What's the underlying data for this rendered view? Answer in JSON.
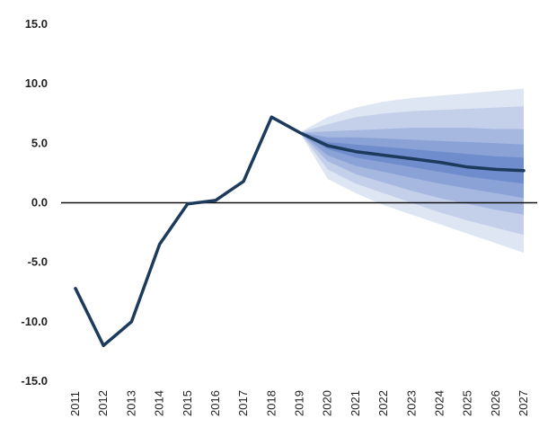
{
  "chart_data": {
    "type": "line",
    "title": "",
    "xlabel": "",
    "ylabel": "",
    "ylim": [
      -15,
      15
    ],
    "xlim": [
      2011,
      2027
    ],
    "grid": false,
    "zero_line": true,
    "y_ticks": [
      "15.0",
      "10.0",
      "5.0",
      "0.0",
      "-5.0",
      "-10.0",
      "-15.0"
    ],
    "x_ticks": [
      "2011",
      "2012",
      "2013",
      "2014",
      "2015",
      "2016",
      "2017",
      "2018",
      "2019",
      "2020",
      "2021",
      "2022",
      "2023",
      "2024",
      "2025",
      "2026",
      "2027"
    ],
    "series": [
      {
        "x": [
          2011,
          2012,
          2013,
          2014,
          2015,
          2016,
          2017,
          2018,
          2019,
          2020,
          2021,
          2022,
          2023,
          2024,
          2025,
          2026,
          2027
        ],
        "values": [
          -7.2,
          -12.0,
          -10.0,
          -3.5,
          -0.1,
          0.2,
          1.8,
          7.2,
          5.9,
          4.8,
          4.3,
          4.0,
          3.7,
          3.4,
          3.0,
          2.8,
          2.7
        ]
      }
    ],
    "fan": {
      "x": [
        2019,
        2020,
        2021,
        2022,
        2023,
        2024,
        2025,
        2026,
        2027
      ],
      "bands": [
        {
          "lower": [
            5.9,
            2.0,
            0.8,
            -0.2,
            -1.0,
            -1.8,
            -2.6,
            -3.4,
            -4.2
          ],
          "upper": [
            5.9,
            7.2,
            8.0,
            8.5,
            8.8,
            9.0,
            9.2,
            9.4,
            9.6
          ],
          "color": "#dfe6f3"
        },
        {
          "lower": [
            5.9,
            2.8,
            1.6,
            0.8,
            0.0,
            -0.8,
            -1.5,
            -2.1,
            -2.7
          ],
          "upper": [
            5.9,
            6.6,
            7.2,
            7.5,
            7.7,
            7.8,
            7.9,
            8.0,
            8.1
          ],
          "color": "#c4d0ea"
        },
        {
          "lower": [
            5.9,
            3.5,
            2.4,
            1.7,
            1.0,
            0.4,
            -0.1,
            -0.6,
            -1.0
          ],
          "upper": [
            5.9,
            6.0,
            6.1,
            6.2,
            6.3,
            6.3,
            6.3,
            6.2,
            6.2
          ],
          "color": "#a6b8e0"
        },
        {
          "lower": [
            5.9,
            4.0,
            3.1,
            2.6,
            2.1,
            1.6,
            1.2,
            0.8,
            0.4
          ],
          "upper": [
            5.9,
            5.5,
            5.5,
            5.4,
            5.3,
            5.2,
            5.1,
            5.0,
            4.9
          ],
          "color": "#8aa2d6"
        },
        {
          "lower": [
            5.9,
            4.5,
            3.8,
            3.4,
            3.0,
            2.6,
            2.2,
            1.9,
            1.6
          ],
          "upper": [
            5.9,
            5.1,
            4.9,
            4.7,
            4.5,
            4.3,
            4.1,
            3.9,
            3.8
          ],
          "color": "#6f8dcc"
        }
      ]
    },
    "colors": {
      "line": "#1b3a5c",
      "zero_line": "#111111"
    }
  }
}
